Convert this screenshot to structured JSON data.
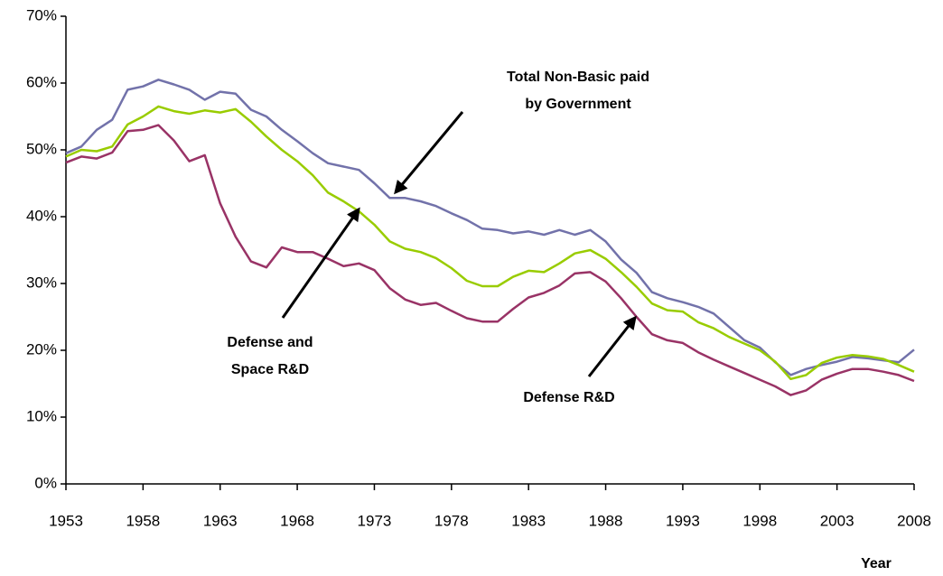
{
  "chart_data": {
    "type": "line",
    "x": [
      1953,
      1954,
      1955,
      1956,
      1957,
      1958,
      1959,
      1960,
      1961,
      1962,
      1963,
      1964,
      1965,
      1966,
      1967,
      1968,
      1969,
      1970,
      1971,
      1972,
      1973,
      1974,
      1975,
      1976,
      1977,
      1978,
      1979,
      1980,
      1981,
      1982,
      1983,
      1984,
      1985,
      1986,
      1987,
      1988,
      1989,
      1990,
      1991,
      1992,
      1993,
      1994,
      1995,
      1996,
      1997,
      1998,
      1999,
      2000,
      2001,
      2002,
      2003,
      2004,
      2005,
      2006,
      2007,
      2008
    ],
    "series": [
      {
        "color": "#7272aa",
        "values": [
          49.5,
          50.5,
          53,
          54.5,
          59,
          59.5,
          60.5,
          59.8,
          59,
          57.5,
          58.7,
          58.4,
          56,
          55,
          53,
          51.3,
          49.5,
          48,
          47.5,
          47,
          45,
          42.8,
          42.8,
          42.3,
          41.6,
          40.5,
          39.5,
          38.2,
          38,
          37.5,
          37.8,
          37.3,
          38,
          37.3,
          38,
          36.3,
          33.6,
          31.6,
          28.7,
          27.8,
          27.2,
          26.5,
          25.5,
          23.5,
          21.5,
          20.4,
          18.2,
          16.3,
          17.2,
          17.8,
          18.3,
          19,
          18.8,
          18.5,
          18.2,
          20.1
        ]
      },
      {
        "color": "#99cc00",
        "values": [
          49,
          50,
          49.8,
          50.5,
          53.8,
          55,
          56.5,
          55.8,
          55.4,
          55.9,
          55.6,
          56.1,
          54.2,
          52,
          50,
          48.3,
          46.2,
          43.6,
          42.3,
          40.8,
          38.8,
          36.3,
          35.2,
          34.7,
          33.8,
          32.3,
          30.4,
          29.6,
          29.6,
          31,
          31.9,
          31.7,
          33,
          34.5,
          35,
          33.7,
          31.7,
          29.5,
          27,
          26,
          25.8,
          24.2,
          23.3,
          22,
          21,
          20,
          18.3,
          15.7,
          16.3,
          18.1,
          18.9,
          19.3,
          19.1,
          18.7,
          17.8,
          16.8
        ]
      },
      {
        "color": "#993366",
        "values": [
          48.1,
          49,
          48.7,
          49.6,
          52.8,
          53,
          53.7,
          51.4,
          48.3,
          49.2,
          42,
          37,
          33.3,
          32.4,
          35.4,
          34.7,
          34.7,
          33.7,
          32.6,
          33,
          32,
          29.3,
          27.6,
          26.8,
          27.1,
          25.9,
          24.8,
          24.3,
          24.3,
          26.2,
          27.9,
          28.6,
          29.7,
          31.5,
          31.7,
          30.3,
          27.8,
          25,
          22.4,
          21.5,
          21.1,
          19.7,
          18.6,
          17.6,
          16.6,
          15.6,
          14.6,
          13.3,
          14,
          15.6,
          16.5,
          17.2,
          17.2,
          16.8,
          16.3,
          15.4
        ]
      }
    ],
    "xlim": [
      1953,
      2008
    ],
    "xticks": [
      1953,
      1958,
      1963,
      1968,
      1973,
      1978,
      1983,
      1988,
      1993,
      1998,
      2003,
      2008
    ],
    "ylim": [
      0,
      70
    ],
    "yticks": [
      {
        "value": 0,
        "label": "0%"
      },
      {
        "value": 10,
        "label": "10%"
      },
      {
        "value": 20,
        "label": "20%"
      },
      {
        "value": 30,
        "label": "30%"
      },
      {
        "value": 40,
        "label": "40%"
      },
      {
        "value": 50,
        "label": "50%"
      },
      {
        "value": 60,
        "label": "60%"
      },
      {
        "value": 70,
        "label": "70%"
      }
    ],
    "x_label": "Year",
    "annotations": [
      {
        "lines": [
          "Total Non-Basic paid",
          "by Government"
        ]
      },
      {
        "lines": [
          "Defense and",
          "Space R&D"
        ]
      },
      {
        "lines": [
          "Defense R&D"
        ]
      }
    ]
  }
}
